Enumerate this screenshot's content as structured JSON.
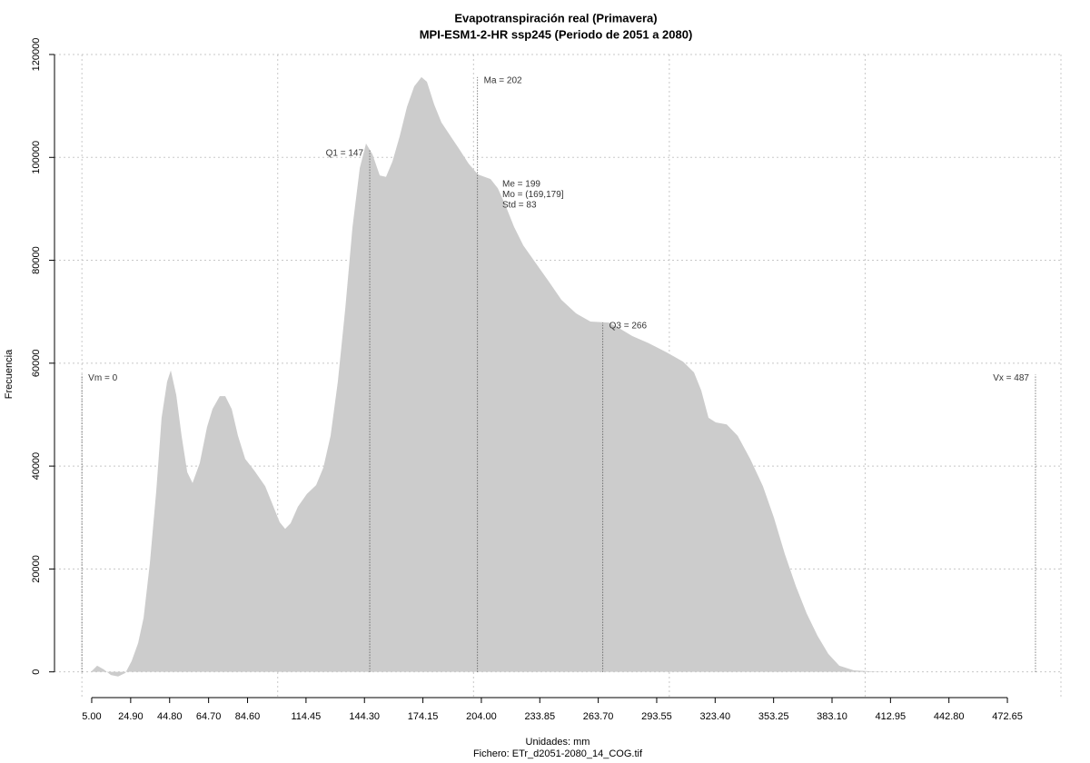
{
  "chart_data": {
    "type": "area",
    "title": "Evapotranspiración real (Primavera)",
    "subtitle": "MPI-ESM1-2-HR ssp245 (Periodo de 2051 a 2080)",
    "x_label": "Unidades: mm",
    "caption": "Fichero: ETr_d2051-2080_14_COG.tif",
    "y_label": "Frecuencia",
    "color": "#cccccc",
    "x": [
      4.6,
      7.8,
      11.1,
      14.8,
      18.5,
      22.2,
      25.4,
      28.7,
      31.5,
      34.7,
      38,
      40.7,
      43.5,
      45.4,
      48.2,
      50.9,
      53.8,
      56.5,
      60.2,
      63.9,
      66.7,
      70.4,
      73.2,
      76.5,
      79.7,
      83.4,
      88.1,
      93.6,
      97.3,
      101,
      103.8,
      106.6,
      110.3,
      114.9,
      119.6,
      123.3,
      127,
      130.7,
      134.5,
      138.2,
      141.9,
      145.1,
      148.4,
      152.1,
      155.3,
      158.6,
      162.3,
      166,
      169.7,
      173.4,
      176.2,
      179.9,
      183.6,
      188.3,
      192.9,
      197.5,
      202.2,
      208.7,
      212.4,
      216.1,
      220.7,
      225.4,
      231.9,
      238.4,
      244.9,
      252.3,
      259.7,
      269,
      273.6,
      281,
      289.4,
      298.7,
      307,
      312.6,
      316.3,
      320,
      323.7,
      329.3,
      334.9,
      341.3,
      347.8,
      353.4,
      359,
      364.6,
      370.1,
      375.7,
      381.2,
      386.8,
      394.2,
      403.5,
      412.8,
      482.4
    ],
    "values": [
      0,
      1200,
      500,
      -600,
      -900,
      -200,
      2100,
      5600,
      10500,
      21100,
      35300,
      49400,
      56400,
      58600,
      53800,
      45900,
      38800,
      36700,
      40600,
      47600,
      51100,
      53600,
      53600,
      51100,
      45900,
      41400,
      39100,
      36100,
      32600,
      29100,
      27800,
      28900,
      32100,
      34600,
      36300,
      39700,
      45900,
      56400,
      70600,
      86500,
      97900,
      102700,
      100600,
      96500,
      96200,
      99200,
      104100,
      109800,
      113800,
      115600,
      114700,
      110300,
      106800,
      104100,
      101500,
      98800,
      96700,
      95800,
      94000,
      90900,
      86500,
      82900,
      79400,
      75900,
      72300,
      69700,
      68100,
      67900,
      67000,
      65300,
      63900,
      62100,
      60300,
      58200,
      54700,
      49400,
      48500,
      48100,
      45900,
      41400,
      36100,
      30000,
      22900,
      16700,
      11400,
      7000,
      3500,
      1200,
      300,
      100,
      0,
      0
    ],
    "xlim": [
      -14,
      500
    ],
    "ylim": [
      -5000,
      120000
    ],
    "xticks": [
      {
        "value": 5,
        "label": "5.00"
      },
      {
        "value": 24.9,
        "label": "24.90"
      },
      {
        "value": 44.8,
        "label": "44.80"
      },
      {
        "value": 64.7,
        "label": "64.70"
      },
      {
        "value": 84.6,
        "label": "84.60"
      },
      {
        "value": 114.45,
        "label": "114.45"
      },
      {
        "value": 144.3,
        "label": "144.30"
      },
      {
        "value": 174.15,
        "label": "174.15"
      },
      {
        "value": 204,
        "label": "204.00"
      },
      {
        "value": 233.85,
        "label": "233.85"
      },
      {
        "value": 263.7,
        "label": "263.70"
      },
      {
        "value": 293.55,
        "label": "293.55"
      },
      {
        "value": 323.4,
        "label": "323.40"
      },
      {
        "value": 353.25,
        "label": "353.25"
      },
      {
        "value": 383.1,
        "label": "383.10"
      },
      {
        "value": 412.95,
        "label": "412.95"
      },
      {
        "value": 442.8,
        "label": "442.80"
      },
      {
        "value": 472.65,
        "label": "472.65"
      }
    ],
    "yticks": [
      0,
      20000,
      40000,
      60000,
      80000,
      100000,
      120000
    ],
    "xgrid": [
      0,
      100,
      200,
      300,
      400,
      500
    ],
    "grid": true,
    "markers": [
      {
        "label": "Vm = 0",
        "x": 0,
        "y": 57800,
        "side": "right"
      },
      {
        "label": "Q1 = 147",
        "x": 147,
        "y": 101500,
        "side": "left"
      },
      {
        "label": "Ma = 202",
        "x": 202,
        "y": 115600,
        "side": "right"
      },
      {
        "label": "Q3 = 266",
        "x": 266,
        "y": 67900,
        "side": "right"
      },
      {
        "label": "Vx = 487",
        "x": 487,
        "y": 57800,
        "side": "left"
      }
    ],
    "annotations": [
      "Me = 199",
      "Mo = (169,179]",
      "Std = 83"
    ]
  }
}
